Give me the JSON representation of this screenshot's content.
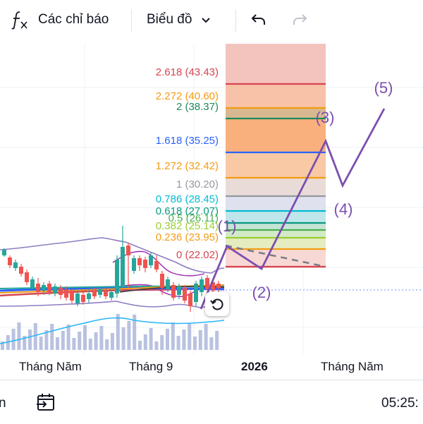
{
  "toolbar": {
    "indicators_label": "Các chỉ báo",
    "chart_label": "Biểu đồ",
    "icons": [
      "fx-icon",
      "chevron-down-icon",
      "undo-icon",
      "redo-icon"
    ]
  },
  "fib_levels": [
    {
      "label": "2.618 (43.43)",
      "color": "#d64550",
      "zone": "#f3c4bd"
    },
    {
      "label": "2.272 (40.60)",
      "color": "#f39c12",
      "zone": "#f7c2a8"
    },
    {
      "label": "2 (38.37)",
      "color": "#1e8a5a",
      "zone": "#d8b890"
    },
    {
      "label": "1.618 (35.25)",
      "color": "#2962ff",
      "zone": "#f9b07c"
    },
    {
      "label": "1.272 (32.42)",
      "color": "#f39c12",
      "zone": "#f8c9a4"
    },
    {
      "label": "1 (30.20)",
      "color": "#9598a1",
      "zone": "#e9dcd8"
    },
    {
      "label": "0.786 (28.45)",
      "color": "#00bcd4",
      "zone": "#dfe2ee"
    },
    {
      "label": "0.618 (27.07)",
      "color": "#089981",
      "zone": "#bfe6ea"
    },
    {
      "label": "0.5 (26.11)",
      "color": "#4caf50",
      "zone": "#c4e4d4"
    },
    {
      "label": "0.382 (25.14)",
      "color": "#9acd32",
      "zone": "#d2eac8"
    },
    {
      "label": "0.236 (23.95)",
      "color": "#f39c12",
      "zone": "#e4ecc0"
    },
    {
      "label": "0 (22.02)",
      "color": "#d64550",
      "zone": "#f8d8d4"
    }
  ],
  "wave_labels": [
    "(1)",
    "(2)",
    "(3)",
    "(4)",
    "(5)"
  ],
  "xaxis": {
    "labels": [
      "Tháng Năm",
      "Tháng 9",
      "2026",
      "Tháng Năm"
    ]
  },
  "bottom": {
    "left_text": "n",
    "time": "05:25:",
    "icons": [
      "calendar-goto-icon"
    ]
  },
  "colors": {
    "wave": "#7b4fb0",
    "up": "#26a69a",
    "down": "#ef5350",
    "volume": "#a7b3d8"
  }
}
